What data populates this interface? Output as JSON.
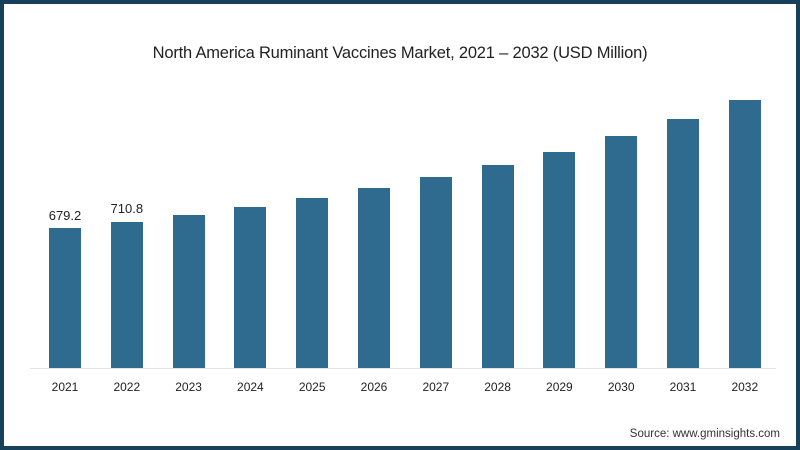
{
  "chart_data": {
    "type": "bar",
    "title": "North America Ruminant Vaccines Market, 2021 – 2032 (USD Million)",
    "xlabel": "",
    "ylabel": "",
    "categories": [
      "2021",
      "2022",
      "2023",
      "2024",
      "2025",
      "2026",
      "2027",
      "2028",
      "2029",
      "2030",
      "2031",
      "2032"
    ],
    "values": [
      679.2,
      710.8,
      742,
      781,
      825,
      873,
      927,
      985,
      1048,
      1126,
      1208,
      1300
    ],
    "data_labels": [
      "679.2",
      "710.8",
      "",
      "",
      "",
      "",
      "",
      "",
      "",
      "",
      "",
      ""
    ],
    "ylim": [
      0,
      1400
    ],
    "grid": false,
    "legend": null,
    "bar_color": "#2e6b8e",
    "source": "Source: www.gminsights.com"
  },
  "frame_color": "#17415a"
}
